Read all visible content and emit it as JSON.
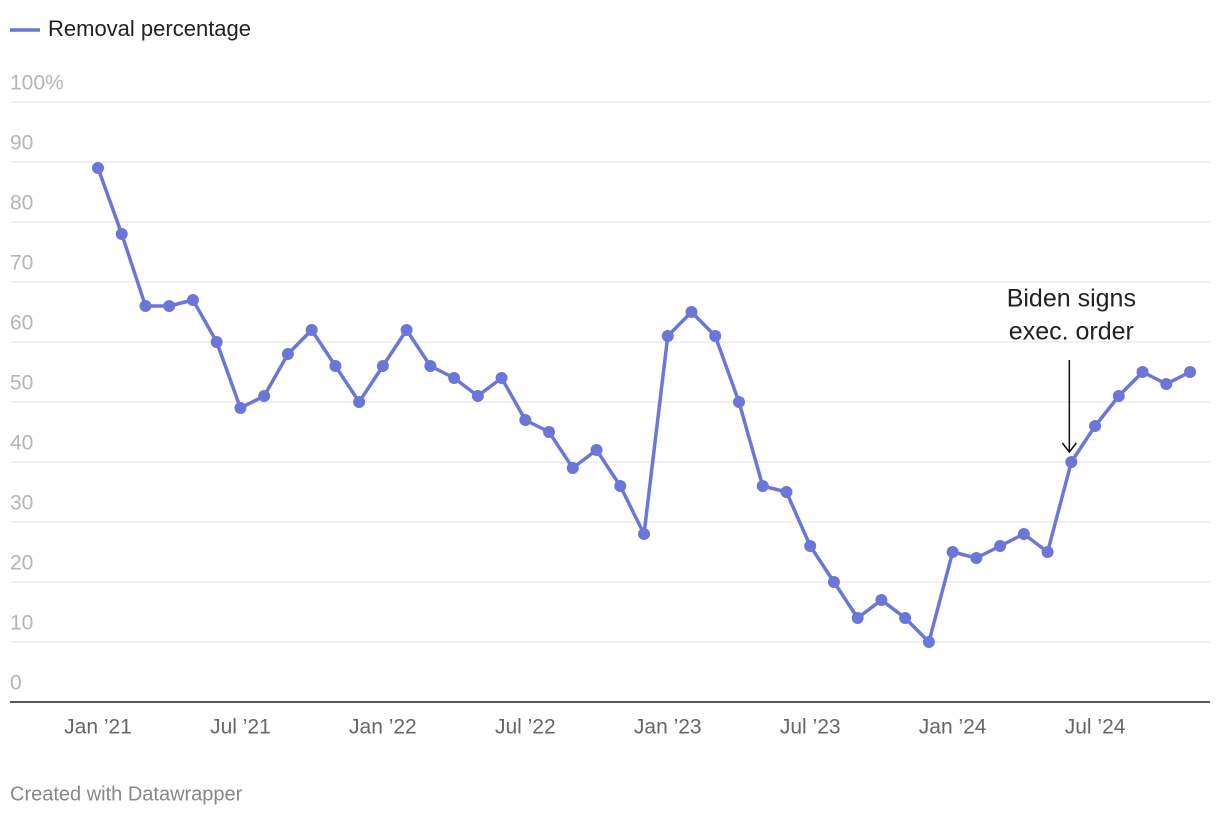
{
  "chart_data": {
    "type": "line",
    "x": [
      "2021-01",
      "2021-02",
      "2021-03",
      "2021-04",
      "2021-05",
      "2021-06",
      "2021-07",
      "2021-08",
      "2021-09",
      "2021-10",
      "2021-11",
      "2021-12",
      "2022-01",
      "2022-02",
      "2022-03",
      "2022-04",
      "2022-05",
      "2022-06",
      "2022-07",
      "2022-08",
      "2022-09",
      "2022-10",
      "2022-11",
      "2022-12",
      "2023-01",
      "2023-02",
      "2023-03",
      "2023-04",
      "2023-05",
      "2023-06",
      "2023-07",
      "2023-08",
      "2023-09",
      "2023-10",
      "2023-11",
      "2023-12",
      "2024-01",
      "2024-02",
      "2024-03",
      "2024-04",
      "2024-05",
      "2024-06",
      "2024-07",
      "2024-08",
      "2024-09",
      "2024-10",
      "2024-11"
    ],
    "series": [
      {
        "name": "Removal percentage",
        "color": "#6b77d8",
        "values": [
          89,
          78,
          66,
          66,
          67,
          60,
          49,
          51,
          58,
          62,
          56,
          50,
          56,
          62,
          56,
          54,
          51,
          54,
          47,
          45,
          39,
          42,
          36,
          28,
          61,
          65,
          61,
          50,
          36,
          35,
          26,
          20,
          14,
          17,
          14,
          10,
          25,
          24,
          26,
          28,
          25,
          40,
          46,
          51,
          55,
          53,
          55
        ]
      }
    ],
    "ylim": [
      0,
      100
    ],
    "yticks": [
      0,
      10,
      20,
      30,
      40,
      50,
      60,
      70,
      80,
      90,
      {
        "value": 100,
        "label": "100%"
      }
    ],
    "xticks": [
      {
        "value": "2021-01",
        "label": "Jan ’21"
      },
      {
        "value": "2021-07",
        "label": "Jul ’21"
      },
      {
        "value": "2022-01",
        "label": "Jan ’22"
      },
      {
        "value": "2022-07",
        "label": "Jul ’22"
      },
      {
        "value": "2023-01",
        "label": "Jan ’23"
      },
      {
        "value": "2023-07",
        "label": "Jul ’23"
      },
      {
        "value": "2024-01",
        "label": "Jan ’24"
      },
      {
        "value": "2024-07",
        "label": "Jul ’24"
      }
    ],
    "grid": true,
    "annotation": {
      "lines": [
        "Biden signs",
        "exec. order"
      ],
      "x": "2024-06"
    },
    "source": "Created with Datawrapper"
  }
}
